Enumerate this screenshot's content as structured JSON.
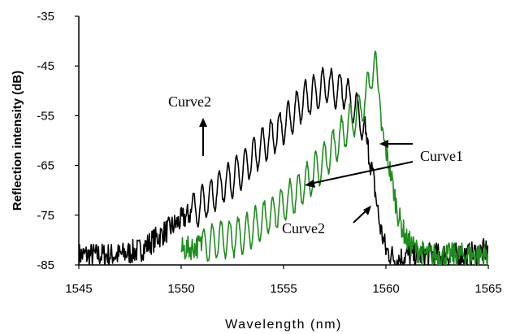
{
  "chart_data": {
    "type": "line",
    "title": "",
    "xlabel": "Wavelength (nm)",
    "ylabel": "Reflection intensity (dB)",
    "xlim": [
      1545,
      1565
    ],
    "ylim": [
      -85,
      -35
    ],
    "xticks": [
      1545,
      1550,
      1555,
      1560,
      1565
    ],
    "yticks": [
      -35,
      -45,
      -55,
      -65,
      -75,
      -85
    ],
    "xtick_labels": [
      "1545",
      "1550",
      "1555",
      "1560",
      "1565"
    ],
    "ytick_labels": [
      "-35",
      "-45",
      "-55",
      "-65",
      "-75",
      "-85"
    ],
    "grid": false,
    "legend": "none",
    "series": [
      {
        "name": "Curve2",
        "color": "#000000",
        "description_points": {
          "x": [
            1545,
            1546,
            1547,
            1548,
            1549,
            1550,
            1551,
            1552,
            1553,
            1554,
            1555,
            1556,
            1557,
            1558,
            1558.8,
            1559.1,
            1559.4,
            1559.7,
            1560,
            1560.5,
            1561,
            1562,
            1563,
            1564,
            1565
          ],
          "y": [
            -83,
            -83,
            -83,
            -82,
            -79,
            -76,
            -73,
            -69,
            -66,
            -61,
            -57,
            -52,
            -49,
            -50,
            -56,
            -61,
            -68,
            -77,
            -82,
            -84,
            -83,
            -83,
            -83,
            -83,
            -82
          ]
        }
      },
      {
        "name": "Curve1",
        "color": "#1e8c1e",
        "description_points": {
          "x": [
            1550,
            1551,
            1552,
            1553,
            1554,
            1555,
            1556,
            1557,
            1557.5,
            1558,
            1558.5,
            1559,
            1559.3,
            1559.5,
            1559.8,
            1560.2,
            1560.6,
            1561,
            1561.5,
            1562,
            1563,
            1564,
            1565
          ],
          "y": [
            -82,
            -81,
            -80,
            -79,
            -76,
            -73,
            -69,
            -64,
            -61,
            -58,
            -55,
            -52,
            -46,
            -45,
            -58,
            -66,
            -75,
            -80,
            -82,
            -83,
            -83,
            -83,
            -83
          ]
        }
      }
    ],
    "annotations": [
      {
        "text": "Curve2",
        "target": "black curve, upper-left arrow",
        "arrow": "up"
      },
      {
        "text": "Curve1",
        "target": "green curve",
        "arrow": "left"
      },
      {
        "text": "Curve2",
        "target": "black curve, lower arrow",
        "arrow": "up-right"
      }
    ]
  }
}
